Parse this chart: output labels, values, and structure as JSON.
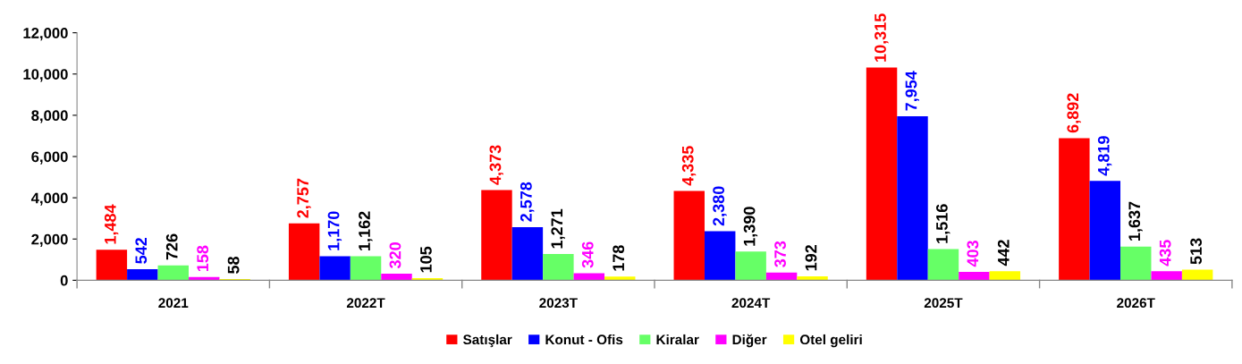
{
  "chart_data": {
    "type": "bar",
    "categories": [
      "2021",
      "2022T",
      "2023T",
      "2024T",
      "2025T",
      "2026T"
    ],
    "series": [
      {
        "name": "Satışlar",
        "color": "#ff0000",
        "values": [
          1484,
          2757,
          4373,
          4335,
          10315,
          6892
        ],
        "value_labels": [
          "1,484",
          "2,757",
          "4,373",
          "4,335",
          "10,315",
          "6,892"
        ]
      },
      {
        "name": "Konut - Ofis",
        "color": "#0000ff",
        "values": [
          542,
          1170,
          2578,
          2380,
          7954,
          4819
        ],
        "value_labels": [
          "542",
          "1,170",
          "2,578",
          "2,380",
          "7,954",
          "4,819"
        ]
      },
      {
        "name": "Kiralar",
        "color": "#66ff66",
        "values": [
          726,
          1162,
          1271,
          1390,
          1516,
          1637
        ],
        "value_labels": [
          "726",
          "1,162",
          "1,271",
          "1,390",
          "1,516",
          "1,637"
        ]
      },
      {
        "name": "Diğer",
        "color": "#ff00ff",
        "values": [
          158,
          320,
          346,
          373,
          403,
          435
        ],
        "value_labels": [
          "158",
          "320",
          "346",
          "373",
          "403",
          "435"
        ]
      },
      {
        "name": "Otel geliri",
        "color": "#ffff00",
        "values": [
          58,
          105,
          178,
          192,
          442,
          513
        ],
        "value_labels": [
          "58",
          "105",
          "178",
          "192",
          "442",
          "513"
        ]
      }
    ],
    "ylim": [
      0,
      12000
    ],
    "yticks": [
      {
        "value": 0,
        "label": "0"
      },
      {
        "value": 2000,
        "label": "2,000"
      },
      {
        "value": 4000,
        "label": "4,000"
      },
      {
        "value": 6000,
        "label": "6,000"
      },
      {
        "value": 8000,
        "label": "8,000"
      },
      {
        "value": 10000,
        "label": "10,000"
      },
      {
        "value": 12000,
        "label": "12,000"
      }
    ],
    "grid": false,
    "legend": "bottom"
  }
}
